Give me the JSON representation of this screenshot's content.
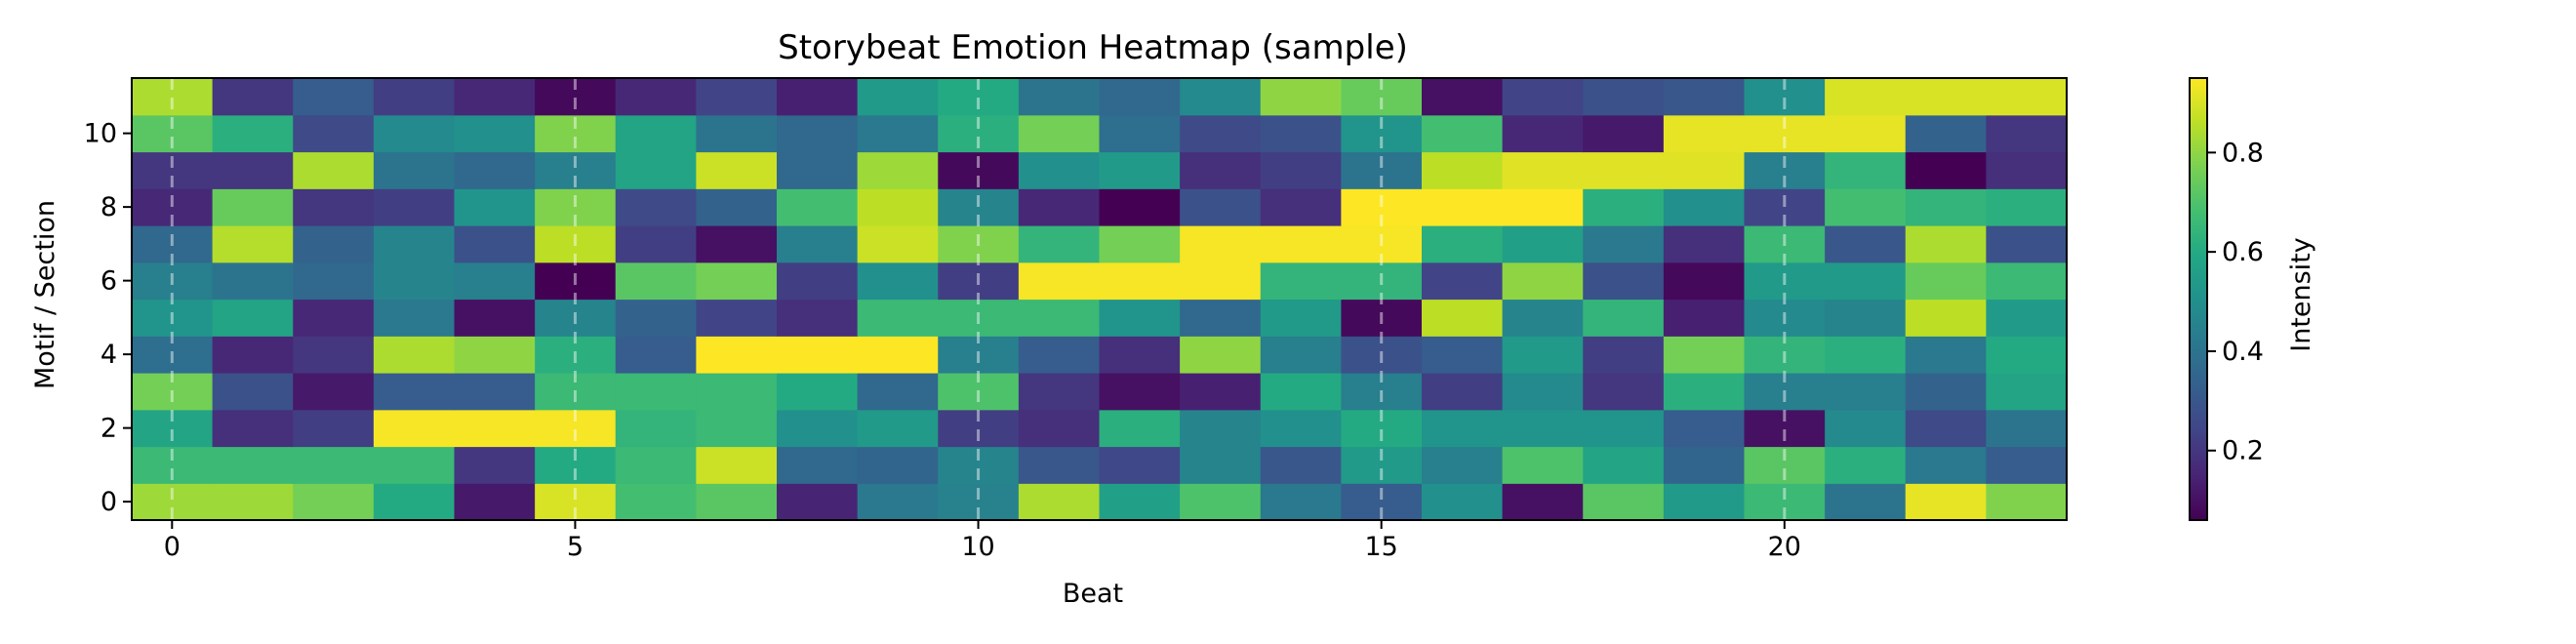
{
  "chart_data": {
    "type": "heatmap",
    "title": "Storybeat Emotion Heatmap (sample)",
    "xlabel": "Beat",
    "ylabel": "Motif / Section",
    "colorbar_label": "Intensity",
    "colormap": "viridis",
    "x_ticks": [
      0,
      5,
      10,
      15,
      20
    ],
    "y_ticks": [
      0,
      2,
      4,
      6,
      8,
      10
    ],
    "colorbar_ticks": [
      0.2,
      0.4,
      0.6,
      0.8
    ],
    "vmin": 0.06,
    "vmax": 0.95,
    "xlim": [
      -0.5,
      23.5
    ],
    "ylim": [
      -0.5,
      11.5
    ],
    "marked_beats": [
      0,
      5,
      10,
      15,
      20
    ],
    "grid": false,
    "rows": [
      [
        0.82,
        0.82,
        0.76,
        0.6,
        0.12,
        0.9,
        0.68,
        0.72,
        0.15,
        0.42,
        0.45,
        0.84,
        0.56,
        0.7,
        0.42,
        0.32,
        0.5,
        0.1,
        0.72,
        0.54,
        0.66,
        0.4,
        0.92,
        0.78
      ],
      [
        0.66,
        0.66,
        0.66,
        0.66,
        0.2,
        0.6,
        0.66,
        0.88,
        0.36,
        0.35,
        0.46,
        0.3,
        0.25,
        0.46,
        0.3,
        0.54,
        0.44,
        0.7,
        0.58,
        0.35,
        0.72,
        0.62,
        0.42,
        0.32
      ],
      [
        0.58,
        0.18,
        0.22,
        0.94,
        0.94,
        0.94,
        0.64,
        0.66,
        0.5,
        0.54,
        0.22,
        0.18,
        0.62,
        0.46,
        0.5,
        0.6,
        0.52,
        0.52,
        0.52,
        0.32,
        0.1,
        0.48,
        0.26,
        0.4
      ],
      [
        0.76,
        0.28,
        0.12,
        0.32,
        0.32,
        0.66,
        0.66,
        0.66,
        0.6,
        0.36,
        0.7,
        0.2,
        0.1,
        0.14,
        0.6,
        0.44,
        0.22,
        0.48,
        0.2,
        0.62,
        0.44,
        0.44,
        0.34,
        0.58
      ],
      [
        0.38,
        0.16,
        0.2,
        0.84,
        0.8,
        0.62,
        0.32,
        0.95,
        0.95,
        0.95,
        0.44,
        0.32,
        0.18,
        0.8,
        0.44,
        0.28,
        0.32,
        0.54,
        0.22,
        0.76,
        0.64,
        0.62,
        0.42,
        0.6
      ],
      [
        0.52,
        0.58,
        0.16,
        0.42,
        0.1,
        0.46,
        0.34,
        0.24,
        0.18,
        0.66,
        0.66,
        0.66,
        0.52,
        0.36,
        0.54,
        0.08,
        0.86,
        0.46,
        0.64,
        0.14,
        0.48,
        0.46,
        0.86,
        0.54
      ],
      [
        0.44,
        0.4,
        0.36,
        0.46,
        0.44,
        0.06,
        0.72,
        0.76,
        0.22,
        0.5,
        0.22,
        0.94,
        0.94,
        0.94,
        0.64,
        0.64,
        0.24,
        0.8,
        0.28,
        0.08,
        0.54,
        0.54,
        0.74,
        0.66
      ],
      [
        0.36,
        0.85,
        0.34,
        0.46,
        0.28,
        0.86,
        0.22,
        0.1,
        0.44,
        0.88,
        0.78,
        0.64,
        0.76,
        0.94,
        0.94,
        0.94,
        0.62,
        0.56,
        0.42,
        0.18,
        0.66,
        0.3,
        0.84,
        0.28
      ],
      [
        0.16,
        0.74,
        0.2,
        0.22,
        0.52,
        0.78,
        0.26,
        0.34,
        0.68,
        0.86,
        0.46,
        0.16,
        0.06,
        0.28,
        0.18,
        0.95,
        0.95,
        0.95,
        0.62,
        0.5,
        0.24,
        0.68,
        0.64,
        0.62
      ],
      [
        0.2,
        0.2,
        0.84,
        0.4,
        0.36,
        0.44,
        0.58,
        0.88,
        0.36,
        0.82,
        0.08,
        0.5,
        0.54,
        0.18,
        0.22,
        0.4,
        0.86,
        0.91,
        0.91,
        0.91,
        0.44,
        0.64,
        0.06,
        0.18
      ],
      [
        0.72,
        0.62,
        0.26,
        0.48,
        0.5,
        0.78,
        0.58,
        0.4,
        0.36,
        0.42,
        0.62,
        0.76,
        0.38,
        0.26,
        0.28,
        0.52,
        0.68,
        0.16,
        0.12,
        0.92,
        0.92,
        0.92,
        0.34,
        0.2
      ],
      [
        0.84,
        0.2,
        0.32,
        0.22,
        0.16,
        0.08,
        0.16,
        0.24,
        0.14,
        0.54,
        0.6,
        0.4,
        0.36,
        0.48,
        0.8,
        0.74,
        0.1,
        0.24,
        0.28,
        0.3,
        0.5,
        0.9,
        0.9,
        0.9
      ]
    ]
  }
}
